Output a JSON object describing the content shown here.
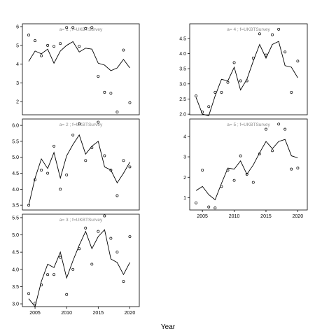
{
  "figure": {
    "xlabel": "Year"
  },
  "chart_data": [
    {
      "type": "line",
      "title": "a= 1  ;  f=UKBTSurvey",
      "xlabel": "Year",
      "ylabel": "",
      "xlim": [
        2003,
        2021.5
      ],
      "ylim": [
        1.3,
        6.15
      ],
      "x_ticks": [],
      "y_ticks": [
        2,
        3,
        4,
        5,
        6
      ],
      "series": [
        {
          "kind": "points",
          "x": [
            2004,
            2005,
            2006,
            2007,
            2008,
            2009,
            2010,
            2011,
            2012,
            2013,
            2014,
            2015,
            2016,
            2017,
            2018,
            2019,
            2020
          ],
          "y": [
            5.55,
            5.25,
            4.45,
            5.0,
            4.95,
            5.1,
            5.95,
            5.95,
            4.95,
            5.9,
            5.95,
            3.35,
            2.5,
            2.45,
            1.45,
            4.75,
            1.95
          ]
        },
        {
          "kind": "line",
          "x": [
            2004,
            2005,
            2006,
            2007,
            2008,
            2009,
            2010,
            2011,
            2012,
            2013,
            2014,
            2015,
            2016,
            2017,
            2018,
            2019,
            2020
          ],
          "y": [
            4.15,
            4.7,
            4.55,
            4.8,
            4.05,
            4.7,
            5.0,
            5.2,
            4.65,
            4.85,
            4.8,
            4.05,
            3.95,
            3.65,
            3.8,
            4.25,
            3.8
          ]
        }
      ]
    },
    {
      "type": "line",
      "title": "a= 4  ;  f=UKBTSurvey",
      "xlabel": "Year",
      "ylabel": "",
      "xlim": [
        2003,
        2021.5
      ],
      "ylim": [
        1.98,
        4.98
      ],
      "x_ticks": [],
      "y_ticks": [
        2.0,
        2.5,
        3.0,
        3.5,
        4.0,
        4.5
      ],
      "series": [
        {
          "kind": "points",
          "x": [
            2004,
            2005,
            2006,
            2007,
            2008,
            2009,
            2010,
            2011,
            2012,
            2013,
            2014,
            2015,
            2016,
            2017,
            2018,
            2019,
            2020
          ],
          "y": [
            2.6,
            2.07,
            2.25,
            2.72,
            2.72,
            3.05,
            3.7,
            3.1,
            3.1,
            3.85,
            4.65,
            3.95,
            4.62,
            4.8,
            4.05,
            2.72,
            3.75
          ]
        },
        {
          "kind": "line",
          "x": [
            2004,
            2005,
            2006,
            2007,
            2008,
            2009,
            2010,
            2011,
            2012,
            2013,
            2014,
            2015,
            2016,
            2017,
            2018,
            2019,
            2020
          ],
          "y": [
            2.55,
            2.0,
            1.95,
            2.6,
            3.15,
            3.1,
            3.55,
            2.8,
            3.15,
            3.75,
            4.3,
            3.85,
            4.3,
            4.4,
            3.6,
            3.55,
            3.2
          ]
        }
      ]
    },
    {
      "type": "line",
      "title": "a= 2  ;  f=UKBTSurvey",
      "xlabel": "Year",
      "ylabel": "",
      "xlim": [
        2003,
        2021.5
      ],
      "ylim": [
        3.35,
        6.2
      ],
      "x_ticks": [],
      "y_ticks": [
        3.5,
        4.0,
        4.5,
        5.0,
        5.5,
        6.0
      ],
      "series": [
        {
          "kind": "points",
          "x": [
            2004,
            2005,
            2006,
            2007,
            2008,
            2009,
            2010,
            2011,
            2012,
            2013,
            2014,
            2015,
            2016,
            2017,
            2018,
            2019,
            2020
          ],
          "y": [
            3.5,
            4.3,
            4.6,
            4.5,
            5.35,
            4.0,
            4.45,
            5.7,
            6.05,
            4.9,
            5.3,
            6.1,
            5.05,
            4.6,
            3.8,
            4.9,
            4.7
          ]
        },
        {
          "kind": "line",
          "x": [
            2004,
            2005,
            2006,
            2007,
            2008,
            2009,
            2010,
            2011,
            2012,
            2013,
            2014,
            2015,
            2016,
            2017,
            2018,
            2019,
            2020
          ],
          "y": [
            3.5,
            4.35,
            4.95,
            4.65,
            5.15,
            4.35,
            5.05,
            5.4,
            5.7,
            5.1,
            5.35,
            5.5,
            4.7,
            4.6,
            4.2,
            4.5,
            4.85
          ]
        }
      ]
    },
    {
      "type": "line",
      "title": "a= 5  ;  f=UKBTSurvey",
      "xlabel": "Year",
      "ylabel": "",
      "xlim": [
        2003,
        2021.5
      ],
      "ylim": [
        0.4,
        4.85
      ],
      "x_ticks": [
        2005,
        2010,
        2015,
        2020
      ],
      "y_ticks": [
        1,
        2,
        3,
        4
      ],
      "series": [
        {
          "kind": "points",
          "x": [
            2004,
            2005,
            2006,
            2007,
            2008,
            2009,
            2010,
            2011,
            2012,
            2013,
            2014,
            2015,
            2016,
            2017,
            2018,
            2019,
            2020
          ],
          "y": [
            0.75,
            2.35,
            0.55,
            0.5,
            1.55,
            2.35,
            1.85,
            3.05,
            2.15,
            1.75,
            3.15,
            4.35,
            3.3,
            4.6,
            4.35,
            2.4,
            2.45
          ]
        },
        {
          "kind": "line",
          "x": [
            2004,
            2005,
            2006,
            2007,
            2008,
            2009,
            2010,
            2011,
            2012,
            2013,
            2014,
            2015,
            2016,
            2017,
            2018,
            2019,
            2020
          ],
          "y": [
            1.35,
            1.55,
            1.15,
            0.9,
            1.7,
            2.45,
            2.4,
            2.8,
            2.15,
            2.6,
            3.2,
            3.75,
            3.4,
            3.75,
            3.85,
            3.05,
            2.95
          ]
        }
      ]
    },
    {
      "type": "line",
      "title": "a= 3  ;  f=UKBTSurvey",
      "xlabel": "Year",
      "ylabel": "",
      "xlim": [
        2003,
        2021.5
      ],
      "ylim": [
        2.92,
        5.6
      ],
      "x_ticks": [
        2005,
        2010,
        2015,
        2020
      ],
      "y_ticks": [
        3.0,
        3.5,
        4.0,
        4.5,
        5.0,
        5.5
      ],
      "series": [
        {
          "kind": "points",
          "x": [
            2004,
            2005,
            2006,
            2007,
            2008,
            2009,
            2010,
            2011,
            2012,
            2013,
            2014,
            2015,
            2016,
            2017,
            2018,
            2019,
            2020
          ],
          "y": [
            3.3,
            3.02,
            3.55,
            3.85,
            3.85,
            4.35,
            3.27,
            4.0,
            4.6,
            5.2,
            4.15,
            5.1,
            5.55,
            4.9,
            4.5,
            3.65,
            4.95
          ]
        },
        {
          "kind": "line",
          "x": [
            2004,
            2005,
            2006,
            2007,
            2008,
            2009,
            2010,
            2011,
            2012,
            2013,
            2014,
            2015,
            2016,
            2017,
            2018,
            2019,
            2020
          ],
          "y": [
            3.15,
            2.92,
            3.65,
            4.15,
            4.05,
            4.5,
            3.75,
            4.25,
            4.7,
            5.1,
            4.6,
            4.95,
            5.15,
            4.3,
            4.2,
            3.85,
            4.2
          ]
        }
      ]
    }
  ]
}
